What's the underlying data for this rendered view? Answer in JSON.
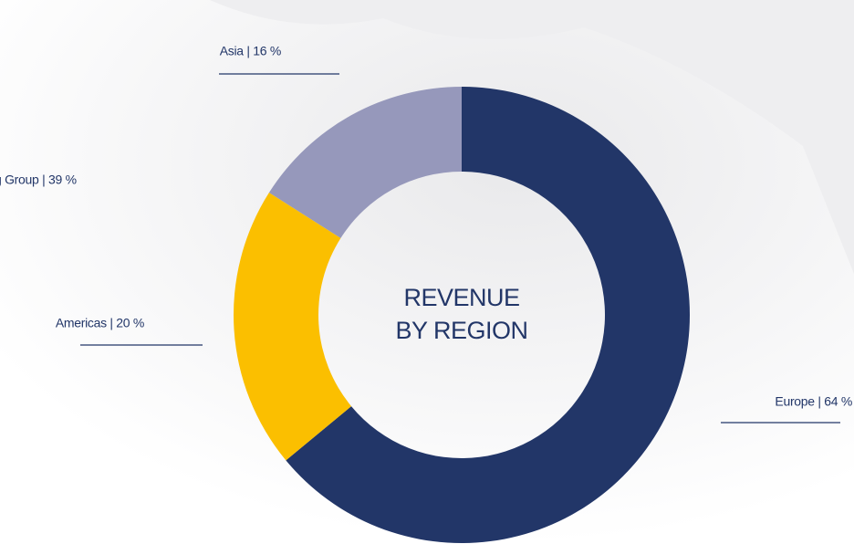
{
  "chart_data": {
    "type": "donut",
    "title": [
      "REVENUE",
      "BY REGION"
    ],
    "labels": [
      "Europe | 64 %",
      "Americas | 20 %",
      "Asia | 16 %"
    ],
    "values": [
      64,
      20,
      16
    ],
    "colors": [
      "#223668",
      "#fbbf00",
      "#9698bb"
    ],
    "annotations": [
      "g Group | 39 %"
    ]
  }
}
